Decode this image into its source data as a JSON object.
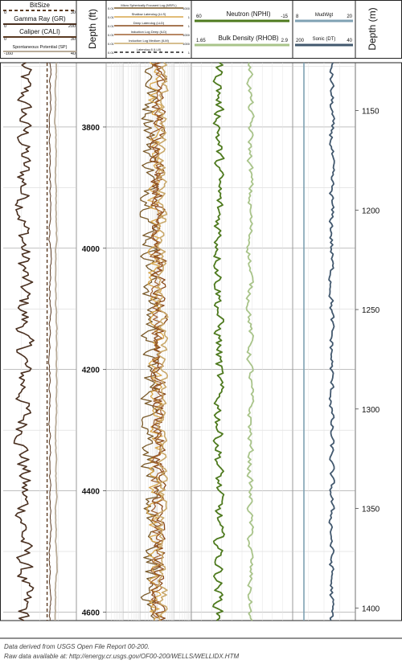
{
  "chart_data": {
    "type": "line",
    "tracks": [
      {
        "id": "t1",
        "headers": [
          {
            "name": "BitSize",
            "min": "0",
            "max": "30",
            "color": "#5a3a22",
            "dash": true
          },
          {
            "name": "Gamma Ray (GR)",
            "min": "0",
            "max": "200",
            "color": "#4a3020",
            "dash": false
          },
          {
            "name": "Caliper (CALI)",
            "min": "0",
            "max": "30",
            "color": "#5a3a22",
            "dash": false
          },
          {
            "name": "Spontaneous Potential (SP)",
            "min": "-160",
            "max": "40",
            "color": "#b8ab98",
            "dash": false
          }
        ]
      },
      {
        "id": "t2",
        "depth_label": "Depth (ft)",
        "ticks": [
          "3800",
          "4000",
          "4200",
          "4400",
          "4600"
        ]
      },
      {
        "id": "t3",
        "scale": "logarithmic",
        "headers": [
          {
            "name": "Micro Spherically Focused Log (MSFL)",
            "min": "0.01",
            "max": "1000",
            "color": "#7a5a2a"
          },
          {
            "name": "Shallow Laterolog (LLS)",
            "min": "0.01",
            "max": "1",
            "color": "#d8a64a"
          },
          {
            "name": "Deep Laterolog (LLD)",
            "min": "0.01",
            "max": "1",
            "color": "#8a4a1a"
          },
          {
            "name": "Induction Log Deep (ILD)",
            "min": "0.01",
            "max": "1000",
            "color": "#a06030"
          },
          {
            "name": "Induction Log Medium (ILM)",
            "min": "0.01",
            "max": "1000",
            "color": "#c9a86a"
          },
          {
            "name": "Laterolog 8 (LL8)",
            "min": "0.01",
            "max": "1",
            "color": "#222222",
            "dash": true
          }
        ]
      },
      {
        "id": "t4",
        "headers": [
          {
            "name": "Neutron (NPHI)",
            "min": "60",
            "max": "-15",
            "color": "#4e7a1e"
          },
          {
            "name": "Bulk Density (RHOB)",
            "min": "1.65",
            "max": "2.9",
            "color": "#a9c48a"
          }
        ]
      },
      {
        "id": "t5",
        "headers": [
          {
            "name": "MudWgt",
            "min": "8",
            "max": "20",
            "color": "#7fa1b3"
          },
          {
            "name": "Sonic (DT)",
            "min": "200",
            "max": "40",
            "color": "#42586e"
          }
        ]
      },
      {
        "id": "t6",
        "depth_label": "Depth (m)",
        "ticks": [
          "1150",
          "1200",
          "1250",
          "1300",
          "1350",
          "1400"
        ]
      }
    ],
    "depth_range_ft": [
      3694,
      4614
    ],
    "grid": true,
    "footnotes": [
      "Data derived from USGS Open File Report 00-200.",
      "Raw data available at: http://energy.cr.usgs.gov/OF00-200/WELLS/WELLIDX.HTM"
    ]
  }
}
